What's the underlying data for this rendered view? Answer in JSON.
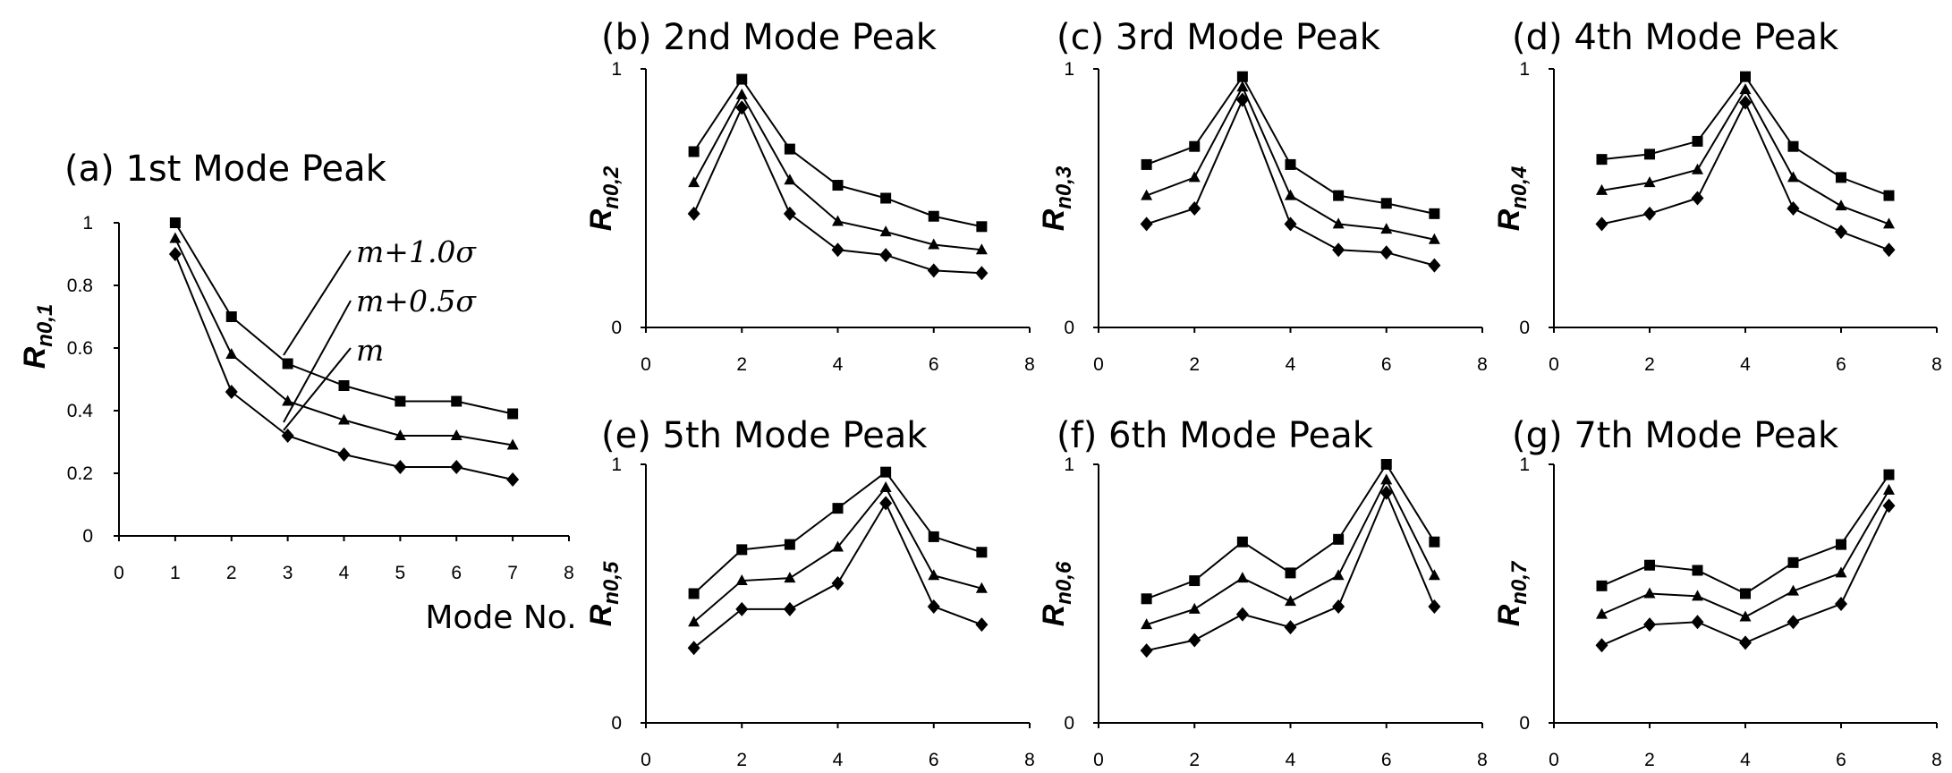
{
  "chart_data": [
    {
      "type": "line",
      "title": "(a) 1st Mode Peak",
      "ylabel": "R",
      "ylabel_sub": "n0,1",
      "xlabel": "Mode No.",
      "x": [
        1,
        2,
        3,
        4,
        5,
        6,
        7
      ],
      "xlim": [
        0,
        8
      ],
      "ylim": [
        0,
        1
      ],
      "xticks": [
        "0",
        "1",
        "2",
        "3",
        "4",
        "5",
        "6",
        "7",
        "8"
      ],
      "yticks": [
        "0",
        "0.2",
        "0.4",
        "0.6",
        "0.8",
        "1"
      ],
      "series": [
        {
          "name": "m+1.0σ",
          "marker": "square",
          "values": [
            1.0,
            0.7,
            0.55,
            0.48,
            0.43,
            0.43,
            0.39
          ]
        },
        {
          "name": "m+0.5σ",
          "marker": "triangle",
          "values": [
            0.95,
            0.58,
            0.43,
            0.37,
            0.32,
            0.32,
            0.29
          ]
        },
        {
          "name": "m",
          "marker": "diamond",
          "values": [
            0.9,
            0.46,
            0.32,
            0.26,
            0.22,
            0.22,
            0.18
          ]
        }
      ],
      "annotations": [
        "m+1.0σ",
        "m+0.5σ",
        "m"
      ]
    },
    {
      "type": "line",
      "title": "(b) 2nd Mode Peak",
      "ylabel": "R",
      "ylabel_sub": "n0,2",
      "x": [
        1,
        2,
        3,
        4,
        5,
        6,
        7
      ],
      "xlim": [
        0,
        8
      ],
      "ylim": [
        0,
        1
      ],
      "xticks": [
        "0",
        "2",
        "4",
        "6",
        "8"
      ],
      "yticks": [
        "0",
        "1"
      ],
      "series": [
        {
          "marker": "square",
          "values": [
            0.68,
            0.96,
            0.69,
            0.55,
            0.5,
            0.43,
            0.39
          ]
        },
        {
          "marker": "triangle",
          "values": [
            0.56,
            0.9,
            0.57,
            0.41,
            0.37,
            0.32,
            0.3
          ]
        },
        {
          "marker": "diamond",
          "values": [
            0.44,
            0.85,
            0.44,
            0.3,
            0.28,
            0.22,
            0.21
          ]
        }
      ]
    },
    {
      "type": "line",
      "title": "(c) 3rd Mode Peak",
      "ylabel": "R",
      "ylabel_sub": "n0,3",
      "x": [
        1,
        2,
        3,
        4,
        5,
        6,
        7
      ],
      "xlim": [
        0,
        8
      ],
      "ylim": [
        0,
        1
      ],
      "xticks": [
        "0",
        "2",
        "4",
        "6",
        "8"
      ],
      "yticks": [
        "0",
        "1"
      ],
      "series": [
        {
          "marker": "square",
          "values": [
            0.63,
            0.7,
            0.97,
            0.63,
            0.51,
            0.48,
            0.44
          ]
        },
        {
          "marker": "triangle",
          "values": [
            0.51,
            0.58,
            0.93,
            0.51,
            0.4,
            0.38,
            0.34
          ]
        },
        {
          "marker": "diamond",
          "values": [
            0.4,
            0.46,
            0.88,
            0.4,
            0.3,
            0.29,
            0.24
          ]
        }
      ]
    },
    {
      "type": "line",
      "title": "(d) 4th Mode Peak",
      "ylabel": "R",
      "ylabel_sub": "n0,4",
      "x": [
        1,
        2,
        3,
        4,
        5,
        6,
        7
      ],
      "xlim": [
        0,
        8
      ],
      "ylim": [
        0,
        1
      ],
      "xticks": [
        "0",
        "2",
        "4",
        "6",
        "8"
      ],
      "yticks": [
        "0",
        "1"
      ],
      "series": [
        {
          "marker": "square",
          "values": [
            0.65,
            0.67,
            0.72,
            0.97,
            0.7,
            0.58,
            0.51
          ]
        },
        {
          "marker": "triangle",
          "values": [
            0.53,
            0.56,
            0.61,
            0.92,
            0.58,
            0.47,
            0.4
          ]
        },
        {
          "marker": "diamond",
          "values": [
            0.4,
            0.44,
            0.5,
            0.87,
            0.46,
            0.37,
            0.3
          ]
        }
      ]
    },
    {
      "type": "line",
      "title": "(e) 5th Mode Peak",
      "ylabel": "R",
      "ylabel_sub": "n0,5",
      "x": [
        1,
        2,
        3,
        4,
        5,
        6,
        7
      ],
      "xlim": [
        0,
        8
      ],
      "ylim": [
        0,
        1
      ],
      "xticks": [
        "0",
        "2",
        "4",
        "6",
        "8"
      ],
      "yticks": [
        "0",
        "1"
      ],
      "series": [
        {
          "marker": "square",
          "values": [
            0.5,
            0.67,
            0.69,
            0.83,
            0.97,
            0.72,
            0.66
          ]
        },
        {
          "marker": "triangle",
          "values": [
            0.39,
            0.55,
            0.56,
            0.68,
            0.91,
            0.57,
            0.52
          ]
        },
        {
          "marker": "diamond",
          "values": [
            0.29,
            0.44,
            0.44,
            0.54,
            0.85,
            0.45,
            0.38
          ]
        }
      ]
    },
    {
      "type": "line",
      "title": "(f) 6th Mode Peak",
      "ylabel": "R",
      "ylabel_sub": "n0,6",
      "x": [
        1,
        2,
        3,
        4,
        5,
        6,
        7
      ],
      "xlim": [
        0,
        8
      ],
      "ylim": [
        0,
        1
      ],
      "xticks": [
        "0",
        "2",
        "4",
        "6",
        "8"
      ],
      "yticks": [
        "0",
        "1"
      ],
      "series": [
        {
          "marker": "square",
          "values": [
            0.48,
            0.55,
            0.7,
            0.58,
            0.71,
            1.0,
            0.7
          ]
        },
        {
          "marker": "triangle",
          "values": [
            0.38,
            0.44,
            0.56,
            0.47,
            0.57,
            0.94,
            0.57
          ]
        },
        {
          "marker": "diamond",
          "values": [
            0.28,
            0.32,
            0.42,
            0.37,
            0.45,
            0.89,
            0.45
          ]
        }
      ]
    },
    {
      "type": "line",
      "title": "(g) 7th Mode Peak",
      "ylabel": "R",
      "ylabel_sub": "n0,7",
      "x": [
        1,
        2,
        3,
        4,
        5,
        6,
        7
      ],
      "xlim": [
        0,
        8
      ],
      "ylim": [
        0,
        1
      ],
      "xticks": [
        "0",
        "2",
        "4",
        "6",
        "8"
      ],
      "yticks": [
        "0",
        "1"
      ],
      "series": [
        {
          "marker": "square",
          "values": [
            0.53,
            0.61,
            0.59,
            0.5,
            0.62,
            0.69,
            0.96
          ]
        },
        {
          "marker": "triangle",
          "values": [
            0.42,
            0.5,
            0.49,
            0.41,
            0.51,
            0.58,
            0.9
          ]
        },
        {
          "marker": "diamond",
          "values": [
            0.3,
            0.38,
            0.39,
            0.31,
            0.39,
            0.46,
            0.84
          ]
        }
      ]
    }
  ]
}
